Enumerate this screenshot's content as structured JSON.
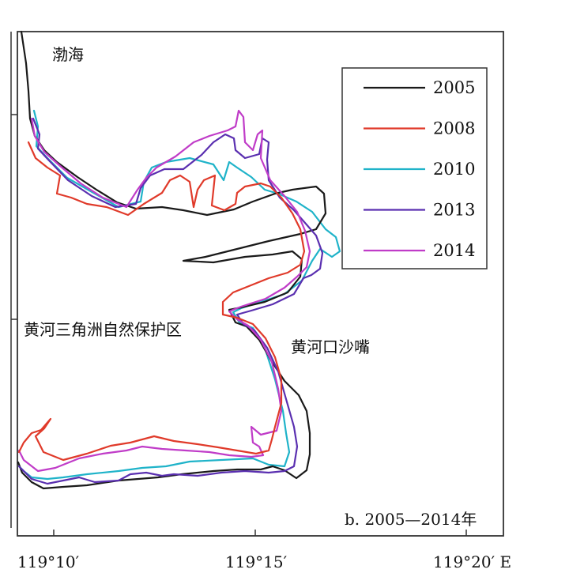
{
  "labels": {
    "sea": "渤海",
    "reserve": "黄河三角洲自然保护区",
    "spit": "黄河口沙嘴",
    "panel": "b. 2005—2014年"
  },
  "x_ticks": [
    "119°10′",
    "119°15′",
    "119°20′ E"
  ],
  "legend": [
    {
      "year": "2005",
      "color": "#1a1a1a"
    },
    {
      "year": "2008",
      "color": "#e03a2a"
    },
    {
      "year": "2010",
      "color": "#1fb3c9"
    },
    {
      "year": "2013",
      "color": "#5a2fb0"
    },
    {
      "year": "2014",
      "color": "#c03cc8"
    }
  ]
}
